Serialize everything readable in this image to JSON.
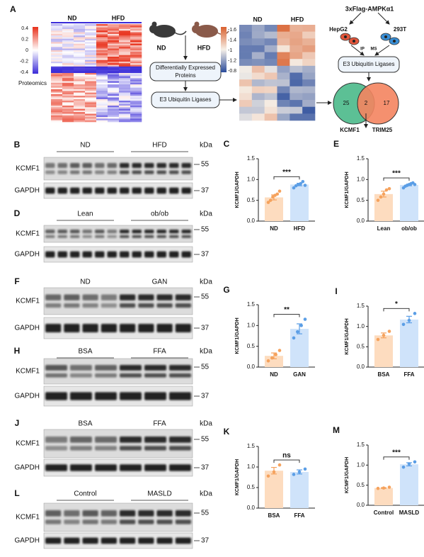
{
  "panel_a": {
    "letter": "A",
    "heatmap_groups": [
      "ND",
      "HFD"
    ],
    "scale_labels": [
      "0.4",
      "0.2",
      "0",
      "-0.2",
      "-0.4"
    ],
    "dataset": "Proteomics",
    "mice": [
      "ND",
      "HFD"
    ],
    "step1_lines": [
      "Differentially Expressed",
      "Proteins"
    ],
    "step2": "E3 Ubiquitin Ligases",
    "heatmap2_groups": [
      "ND",
      "HFD"
    ],
    "scale2_labels": [
      "-1.6",
      "-1.4",
      "-1",
      "-1.2",
      "-0.8"
    ],
    "bait": "3xFlag-AMPKα1",
    "cell_lines": [
      "HepG2",
      "293T"
    ],
    "method": [
      "IP",
      "MS"
    ],
    "step3": "E3 Ubiquitin Ligases",
    "venn_counts": [
      25,
      2,
      17
    ],
    "venn_hits": [
      "KCMF1",
      "TRIM25"
    ]
  },
  "blots": [
    {
      "letter": "B",
      "groups": [
        "ND",
        "HFD"
      ],
      "unit": "kDa",
      "rows": [
        {
          "name": "KCMF1",
          "marker": "55"
        },
        {
          "name": "GAPDH",
          "marker": "37"
        }
      ]
    },
    {
      "letter": "D",
      "groups": [
        "Lean",
        "ob/ob"
      ],
      "unit": "kDa",
      "rows": [
        {
          "name": "KCMF1",
          "marker": "55"
        },
        {
          "name": "GAPDH",
          "marker": "37"
        }
      ]
    },
    {
      "letter": "F",
      "groups": [
        "ND",
        "GAN"
      ],
      "unit": "kDa",
      "rows": [
        {
          "name": "KCMF1",
          "marker": "55"
        },
        {
          "name": "GAPDH",
          "marker": "37"
        }
      ]
    },
    {
      "letter": "H",
      "groups": [
        "BSA",
        "FFA"
      ],
      "unit": "kDa",
      "rows": [
        {
          "name": "KCMF1",
          "marker": "55"
        },
        {
          "name": "GAPDH",
          "marker": "37"
        }
      ]
    },
    {
      "letter": "J",
      "groups": [
        "BSA",
        "FFA"
      ],
      "unit": "kDa",
      "rows": [
        {
          "name": "KCMF1",
          "marker": "55"
        },
        {
          "name": "GAPDH",
          "marker": "37"
        }
      ]
    },
    {
      "letter": "L",
      "groups": [
        "Control",
        "MASLD"
      ],
      "unit": "kDa",
      "rows": [
        {
          "name": "KCMF1",
          "marker": "55"
        },
        {
          "name": "GAPDH",
          "marker": "37"
        }
      ]
    }
  ],
  "chart_data": [
    {
      "type": "bar",
      "letter": "C",
      "ylabel": "KCMF1/GAPDH",
      "categories": [
        "ND",
        "HFD"
      ],
      "values": [
        0.57,
        0.88
      ],
      "errors": [
        0.06,
        0.03
      ],
      "points": [
        [
          0.45,
          0.5,
          0.58,
          0.62,
          0.65,
          0.72
        ],
        [
          0.8,
          0.85,
          0.88,
          0.9,
          0.95,
          0.86
        ]
      ],
      "significance": "***",
      "colors": [
        "#fddcbf",
        "#cfe3fa"
      ],
      "point_colors": [
        "#f5a25d",
        "#5b9ee6"
      ],
      "ylim": [
        0,
        1.5
      ],
      "yticks": [
        {
          "value": 0,
          "label": "0.0"
        },
        {
          "value": 0.5,
          "label": "0.5"
        },
        {
          "value": 1,
          "label": "1.0"
        },
        {
          "value": 1.5,
          "label": "1.5"
        }
      ]
    },
    {
      "type": "bar",
      "letter": "E",
      "ylabel": "KCMF1/GAPDH",
      "categories": [
        "Lean",
        "ob/ob"
      ],
      "values": [
        0.65,
        0.87
      ],
      "errors": [
        0.07,
        0.02
      ],
      "points": [
        [
          0.5,
          0.58,
          0.65,
          0.75,
          0.78
        ],
        [
          0.8,
          0.84,
          0.86,
          0.88,
          0.9,
          0.92,
          0.88
        ]
      ],
      "significance": "***",
      "colors": [
        "#fddcbf",
        "#cfe3fa"
      ],
      "point_colors": [
        "#f5a25d",
        "#5b9ee6"
      ],
      "ylim": [
        0,
        1.5
      ],
      "yticks": [
        {
          "value": 0,
          "label": "0.0"
        },
        {
          "value": 0.5,
          "label": "0.5"
        },
        {
          "value": 1,
          "label": "1.0"
        },
        {
          "value": 1.5,
          "label": "1.5"
        }
      ]
    },
    {
      "type": "bar",
      "letter": "G",
      "ylabel": "KCMF1/GAPDH",
      "categories": [
        "ND",
        "GAN"
      ],
      "values": [
        0.27,
        0.92
      ],
      "errors": [
        0.07,
        0.12
      ],
      "points": [
        [
          0.15,
          0.22,
          0.3,
          0.4
        ],
        [
          0.7,
          0.85,
          1.0,
          1.15
        ]
      ],
      "significance": "**",
      "colors": [
        "#fddcbf",
        "#cfe3fa"
      ],
      "point_colors": [
        "#f5a25d",
        "#5b9ee6"
      ],
      "ylim": [
        0,
        1.5
      ],
      "yticks": [
        {
          "value": 0,
          "label": "0.0"
        },
        {
          "value": 0.5,
          "label": "0.5"
        },
        {
          "value": 1,
          "label": "1.0"
        },
        {
          "value": 1.5,
          "label": "1.5"
        }
      ]
    },
    {
      "type": "bar",
      "letter": "I",
      "ylabel": "KCMF1/GAPDH",
      "categories": [
        "BSA",
        "FFA"
      ],
      "values": [
        0.78,
        1.17
      ],
      "errors": [
        0.06,
        0.08
      ],
      "points": [
        [
          0.68,
          0.78,
          0.88
        ],
        [
          1.05,
          1.15,
          1.32
        ]
      ],
      "significance": "*",
      "colors": [
        "#fddcbf",
        "#cfe3fa"
      ],
      "point_colors": [
        "#f5a25d",
        "#5b9ee6"
      ],
      "ylim": [
        0,
        1.5
      ],
      "yticks": [
        {
          "value": 0,
          "label": "0.0"
        },
        {
          "value": 0.5,
          "label": "0.5"
        },
        {
          "value": 1,
          "label": "1.0"
        },
        {
          "value": 1.5,
          "label": "1.5"
        }
      ]
    },
    {
      "type": "bar",
      "letter": "K",
      "ylabel": "KCMF1/GAPDH",
      "categories": [
        "BSA",
        "FFA"
      ],
      "values": [
        0.91,
        0.88
      ],
      "errors": [
        0.08,
        0.05
      ],
      "points": [
        [
          0.78,
          0.88,
          1.05
        ],
        [
          0.82,
          0.88,
          0.95
        ]
      ],
      "significance": "ns",
      "colors": [
        "#fddcbf",
        "#cfe3fa"
      ],
      "point_colors": [
        "#f5a25d",
        "#5b9ee6"
      ],
      "ylim": [
        0,
        1.5
      ],
      "yticks": [
        {
          "value": 0,
          "label": "0.0"
        },
        {
          "value": 0.5,
          "label": "0.5"
        },
        {
          "value": 1,
          "label": "1.0"
        },
        {
          "value": 1.5,
          "label": "1.5"
        }
      ]
    },
    {
      "type": "bar",
      "letter": "M",
      "ylabel": "KCMF1/GAPDH",
      "categories": [
        "Control",
        "MASLD"
      ],
      "values": [
        0.43,
        1.02
      ],
      "errors": [
        0.01,
        0.04
      ],
      "points": [
        [
          0.42,
          0.43,
          0.45
        ],
        [
          0.95,
          1.03,
          1.08
        ]
      ],
      "significance": "***",
      "colors": [
        "#fddcbf",
        "#cfe3fa"
      ],
      "point_colors": [
        "#f5a25d",
        "#5b9ee6"
      ],
      "ylim": [
        0,
        1.5
      ],
      "yticks": [
        {
          "value": 0,
          "label": "0.0"
        },
        {
          "value": 0.5,
          "label": "0.5"
        },
        {
          "value": 1,
          "label": "1.0"
        },
        {
          "value": 1.5,
          "label": "1.5"
        }
      ]
    }
  ]
}
